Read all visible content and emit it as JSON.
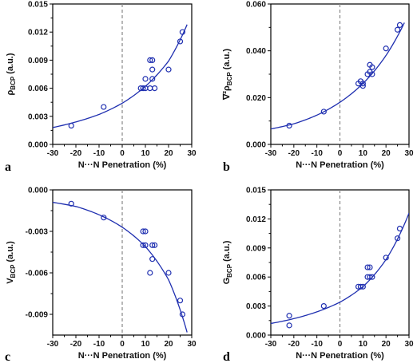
{
  "colors": {
    "series": "#1f2fb0",
    "axis": "#000000",
    "zero_line": "#888888"
  },
  "chart_data": [
    {
      "type": "scatter",
      "panel": "a",
      "xlabel": "N···N Penetration (%)",
      "ylabel_main": "ρ",
      "ylabel_sub": "BCP",
      "ylabel_suffix": " (a.u.)",
      "xlim": [
        -30,
        30
      ],
      "ylim": [
        0.0,
        0.015
      ],
      "xticks": [
        "-30",
        "-20",
        "-10",
        "0",
        "10",
        "20",
        "30"
      ],
      "yticks": [
        "0.000",
        "0.003",
        "0.006",
        "0.009",
        "0.012",
        "0.015"
      ],
      "points": [
        [
          -22,
          0.002
        ],
        [
          -8,
          0.004
        ],
        [
          8,
          0.006
        ],
        [
          9,
          0.006
        ],
        [
          10,
          0.006
        ],
        [
          10,
          0.007
        ],
        [
          12,
          0.009
        ],
        [
          13,
          0.009
        ],
        [
          13,
          0.007
        ],
        [
          13,
          0.008
        ],
        [
          14,
          0.006
        ],
        [
          12,
          0.006
        ],
        [
          20,
          0.008
        ],
        [
          25,
          0.011
        ],
        [
          26,
          0.012
        ]
      ],
      "fit": {
        "kind": "exp_growth",
        "x": [
          -30,
          -20,
          -10,
          0,
          10,
          20,
          28
        ],
        "y": [
          0.0018,
          0.0024,
          0.0032,
          0.0044,
          0.0062,
          0.0089,
          0.0128
        ]
      }
    },
    {
      "type": "scatter",
      "panel": "b",
      "xlabel": "N···N Penetration (%)",
      "ylabel_main": "∇²ρ",
      "ylabel_sub": "BCP",
      "ylabel_suffix": " (a.u.)",
      "xlim": [
        -30,
        30
      ],
      "ylim": [
        0.0,
        0.06
      ],
      "xticks": [
        "-30",
        "-20",
        "-10",
        "0",
        "10",
        "20",
        "30"
      ],
      "yticks": [
        "0.000",
        "0.020",
        "0.040",
        "0.060"
      ],
      "points": [
        [
          -22,
          0.008
        ],
        [
          -7,
          0.014
        ],
        [
          8,
          0.026
        ],
        [
          9,
          0.027
        ],
        [
          10,
          0.025
        ],
        [
          10,
          0.026
        ],
        [
          12,
          0.03
        ],
        [
          13,
          0.031
        ],
        [
          13,
          0.034
        ],
        [
          14,
          0.03
        ],
        [
          14,
          0.033
        ],
        [
          20,
          0.041
        ],
        [
          25,
          0.049
        ],
        [
          26,
          0.051
        ]
      ],
      "fit": {
        "kind": "exp_growth",
        "x": [
          -30,
          -20,
          -10,
          0,
          10,
          20,
          28
        ],
        "y": [
          0.0066,
          0.0088,
          0.0125,
          0.018,
          0.026,
          0.038,
          0.052
        ]
      }
    },
    {
      "type": "scatter",
      "panel": "c",
      "xlabel": "N···N Penetration (%)",
      "ylabel_main": "V",
      "ylabel_sub": "BCP",
      "ylabel_suffix": " (a.u.)",
      "xlim": [
        -30,
        30
      ],
      "ylim": [
        -0.0105,
        0.0
      ],
      "xticks": [
        "-30",
        "-20",
        "-10",
        "0",
        "10",
        "20",
        "30"
      ],
      "yticks": [
        "0.000",
        "-0.003",
        "-0.006",
        "-0.009"
      ],
      "points": [
        [
          -22,
          -0.001
        ],
        [
          -8,
          -0.002
        ],
        [
          9,
          -0.003
        ],
        [
          10,
          -0.003
        ],
        [
          9,
          -0.004
        ],
        [
          10,
          -0.004
        ],
        [
          12,
          -0.006
        ],
        [
          13,
          -0.004
        ],
        [
          13,
          -0.005
        ],
        [
          14,
          -0.004
        ],
        [
          20,
          -0.006
        ],
        [
          25,
          -0.008
        ],
        [
          26,
          -0.009
        ]
      ],
      "fit": {
        "kind": "exp_decay",
        "x": [
          -30,
          -20,
          -10,
          0,
          10,
          20,
          28
        ],
        "y": [
          -0.0009,
          -0.0012,
          -0.0018,
          -0.0027,
          -0.0041,
          -0.0065,
          -0.0103
        ]
      }
    },
    {
      "type": "scatter",
      "panel": "d",
      "xlabel": "N···N Penetration (%)",
      "ylabel_main": "G",
      "ylabel_sub": "BCP",
      "ylabel_suffix": " (a.u.)",
      "xlim": [
        -30,
        30
      ],
      "ylim": [
        0.0,
        0.015
      ],
      "xticks": [
        "-30",
        "-20",
        "-10",
        "0",
        "10",
        "20",
        "30"
      ],
      "yticks": [
        "0.000",
        "0.003",
        "0.006",
        "0.009",
        "0.012",
        "0.015"
      ],
      "points": [
        [
          -22,
          0.002
        ],
        [
          -22,
          0.001
        ],
        [
          -7,
          0.003
        ],
        [
          8,
          0.005
        ],
        [
          9,
          0.005
        ],
        [
          10,
          0.005
        ],
        [
          12,
          0.007
        ],
        [
          13,
          0.007
        ],
        [
          12,
          0.006
        ],
        [
          14,
          0.006
        ],
        [
          13,
          0.006
        ],
        [
          20,
          0.008
        ],
        [
          25,
          0.01
        ],
        [
          26,
          0.011
        ]
      ],
      "fit": {
        "kind": "exp_growth",
        "x": [
          -30,
          -20,
          -10,
          0,
          10,
          20,
          30
        ],
        "y": [
          0.0012,
          0.0017,
          0.0024,
          0.0034,
          0.005,
          0.0078,
          0.0126
        ]
      }
    }
  ]
}
